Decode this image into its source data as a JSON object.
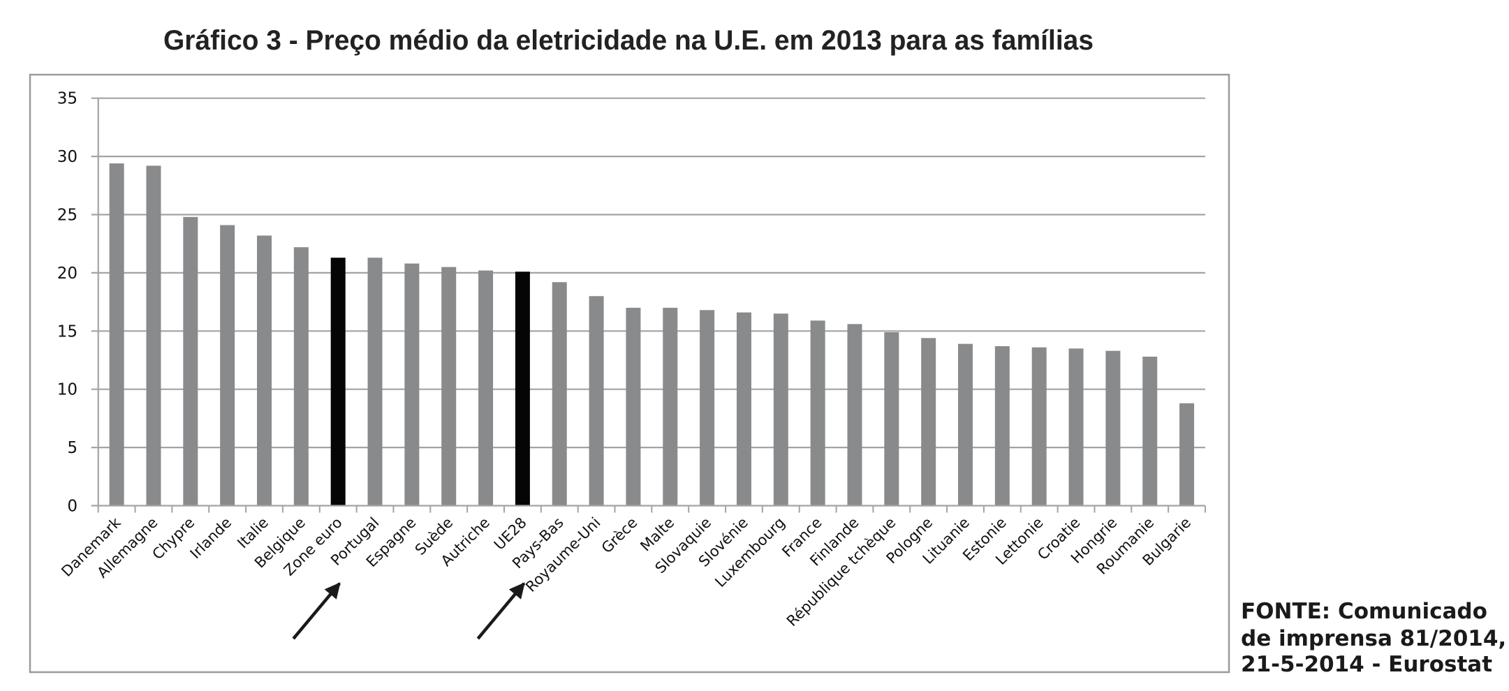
{
  "chart_data": {
    "type": "bar",
    "title": "Gráfico 3 - Preço médio da eletricidade na U.E. em 2013 para as famílias",
    "xlabel": "",
    "ylabel": "",
    "ylim": [
      0,
      35
    ],
    "yticks": [
      0,
      5,
      10,
      15,
      20,
      25,
      30,
      35
    ],
    "grid": true,
    "categories": [
      "Danemark",
      "Allemagne",
      "Chypre",
      "Irlande",
      "Italie",
      "Belgique",
      "Zone euro",
      "Portugal",
      "Espagne",
      "Suède",
      "Autriche",
      "UE28",
      "Pays-Bas",
      "Royaume-Uni",
      "Grèce",
      "Malte",
      "Slovaquie",
      "Slovénie",
      "Luxembourg",
      "France",
      "Finlande",
      "République tchèque",
      "Pologne",
      "Lituanie",
      "Estonie",
      "Lettonie",
      "Croatie",
      "Hongrie",
      "Roumanie",
      "Bulgarie"
    ],
    "values": [
      29.4,
      29.2,
      24.8,
      24.1,
      23.2,
      22.2,
      21.3,
      21.3,
      20.8,
      20.5,
      20.2,
      20.1,
      19.2,
      18.0,
      17.0,
      17.0,
      16.8,
      16.6,
      16.5,
      15.9,
      15.6,
      14.9,
      14.4,
      13.9,
      13.7,
      13.6,
      13.5,
      13.3,
      12.8,
      8.8
    ],
    "highlighted": [
      "Zone euro",
      "UE28"
    ],
    "colors": {
      "bar": "#898a8c",
      "highlight": "#050505",
      "grid": "#a3a3a3",
      "frame": "#9a9a9a",
      "arrow": "#1a1a1a"
    },
    "annotations": [
      {
        "type": "arrow",
        "points_to": "Zone euro"
      },
      {
        "type": "arrow",
        "points_to": "UE28"
      }
    ]
  },
  "source": {
    "lines": [
      "FONTE: Comunicado",
      "de imprensa 81/2014,",
      "21-5-2014 - Eurostat"
    ]
  }
}
